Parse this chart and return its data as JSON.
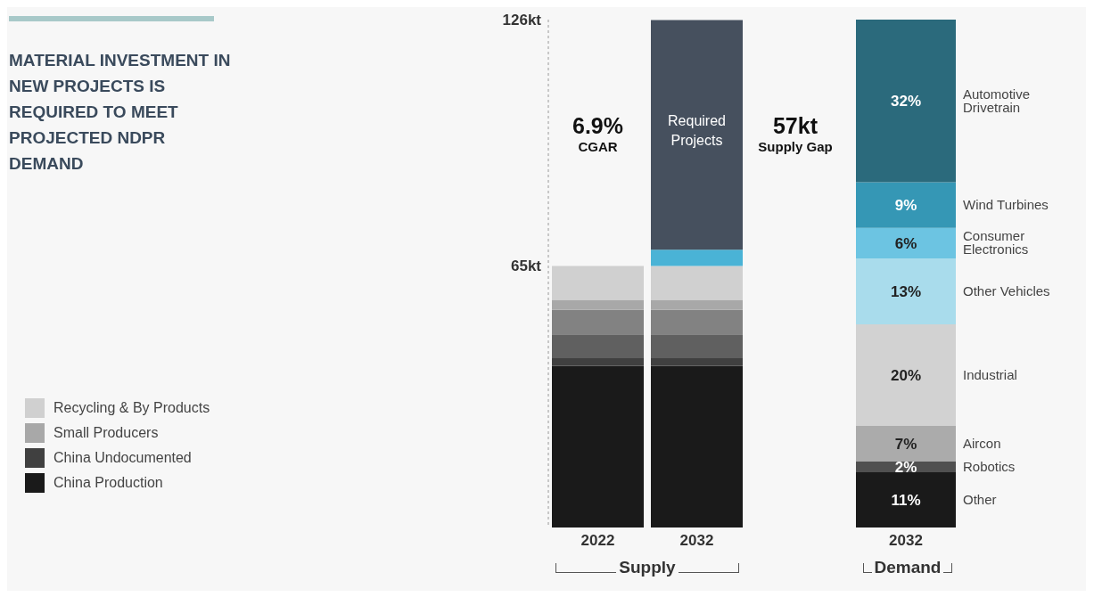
{
  "chart_data": [
    {
      "type": "other",
      "title": "MATERIAL INVESTMENT IN NEW PROJECTS IS REQUIRED TO MEET PROJECTED NDPR DEMAND"
    },
    {
      "type": "bar",
      "categories": [
        "2022",
        "2032"
      ],
      "stacked": true,
      "ylim": [
        0,
        126
      ],
      "yticks": [
        {
          "value": 65,
          "label": "65kt"
        },
        {
          "value": 126,
          "label": "126kt"
        }
      ],
      "legend": "bottom left",
      "series": [
        {
          "name": "China Production",
          "color": "#1a1a1a",
          "values": [
            40.1,
            40.1
          ]
        },
        {
          "name": "China Undocumented",
          "color": "#404040",
          "values": [
            1.9,
            1.9
          ]
        },
        {
          "color": "#606060",
          "values": [
            5.9,
            5.9
          ]
        },
        {
          "color": "#828282",
          "values": [
            6.1,
            6.1
          ]
        },
        {
          "name": "Small Producers",
          "color": "#a8a8a8",
          "values": [
            2.5,
            2.5
          ]
        },
        {
          "name": "Recycling & By Products",
          "color": "#d0d0d0",
          "values": [
            8.4,
            8.4
          ]
        },
        {
          "color": "#4ab3d6",
          "values": [
            null,
            4
          ]
        },
        {
          "name": "Required Projects",
          "color": "#46505e",
          "values": [
            null,
            57
          ]
        }
      ],
      "annotations": [
        "6.9% CGAR",
        "57kt Supply Gap",
        "Supply"
      ]
    },
    {
      "type": "bar",
      "categories": [
        "2032"
      ],
      "stacked": true,
      "ylim": [
        0,
        100
      ],
      "tick_labels": "x",
      "series": [
        {
          "name": "Other",
          "color": "#1a1a1a",
          "values": [
            11
          ],
          "value_labels": [
            "11%"
          ]
        },
        {
          "name": "Robotics",
          "color": "#505050",
          "values": [
            2
          ],
          "value_labels": [
            "2%"
          ]
        },
        {
          "name": "Aircon",
          "color": "#ababab",
          "values": [
            7
          ],
          "value_labels": [
            "7%"
          ]
        },
        {
          "name": "Industrial",
          "color": "#d2d2d2",
          "values": [
            20
          ],
          "value_labels": [
            "20%"
          ]
        },
        {
          "name": "Other Vehicles",
          "color": "#a9dcec",
          "values": [
            13
          ],
          "value_labels": [
            "13%"
          ]
        },
        {
          "name": "Consumer Electronics",
          "color": "#6cc4e2",
          "values": [
            6
          ],
          "value_labels": [
            "6%"
          ]
        },
        {
          "name": "Wind Turbines",
          "color": "#3597b5",
          "values": [
            9
          ],
          "value_labels": [
            "9%"
          ]
        },
        {
          "name": "Automotive Drivetrain",
          "color": "#2b6a7c",
          "values": [
            32
          ],
          "value_labels": [
            "32%"
          ]
        }
      ],
      "annotations": [
        "Demand"
      ]
    }
  ]
}
